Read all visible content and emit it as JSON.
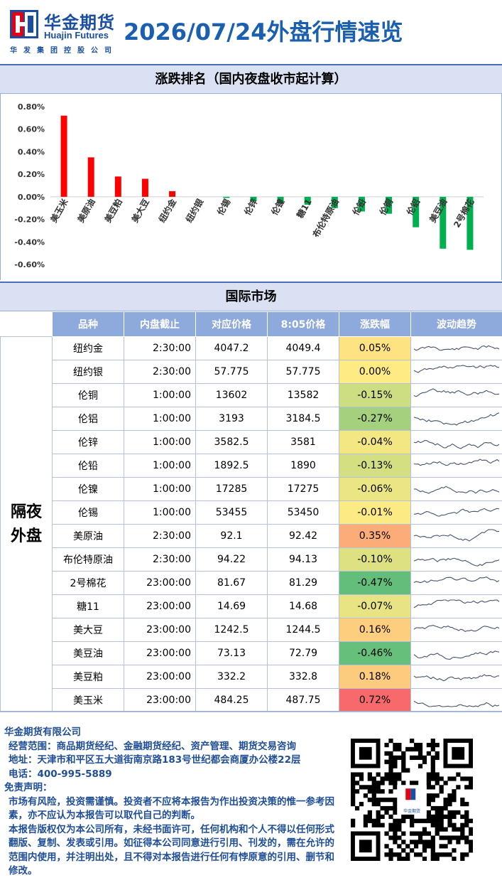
{
  "header": {
    "logo_cn": "华金期货",
    "logo_en": "Huajin Futures",
    "logo_sub": "华发集团控股公司",
    "title": "2026/07/24外盘行情速览"
  },
  "colors": {
    "up": "#ff0000",
    "down": "#00b050",
    "header_blue": "#1b5fb0",
    "table_head": "#8ea9db"
  },
  "ranking_title": "涨跌排名（国内夜盘收市起计算）",
  "chart_data": {
    "type": "bar",
    "categories": [
      "美玉米",
      "美原油",
      "美豆粕",
      "美大豆",
      "纽约金",
      "纽约银",
      "伦锡",
      "伦锌",
      "伦镍",
      "糖11",
      "布伦特原油",
      "伦铅",
      "伦铜",
      "伦铝",
      "美豆油",
      "2号棉花"
    ],
    "values": [
      0.72,
      0.35,
      0.18,
      0.16,
      0.05,
      0.0,
      -0.01,
      -0.04,
      -0.06,
      -0.07,
      -0.1,
      -0.13,
      -0.15,
      -0.27,
      -0.46,
      -0.47
    ],
    "ylim": [
      -0.6,
      0.8
    ],
    "yticks": [
      "0.80%",
      "0.60%",
      "0.40%",
      "0.20%",
      "0.00%",
      "-0.20%",
      "-0.40%",
      "-0.60%"
    ],
    "ytick_values": [
      0.8,
      0.6,
      0.4,
      0.2,
      0.0,
      -0.2,
      -0.4,
      -0.6
    ],
    "grid": false,
    "legend": "none"
  },
  "intl_title": "国际市场",
  "table": {
    "headers": [
      "品种",
      "内盘截止",
      "对应价格",
      "8:05价格",
      "涨跌幅",
      "波动趋势"
    ],
    "group_label": "隔夜外盘",
    "rows": [
      {
        "name": "纽约金",
        "cutoff": "2:30:00",
        "price": "4047.2",
        "price805": "4049.4",
        "change": "0.05%",
        "pct": 0.05
      },
      {
        "name": "纽约银",
        "cutoff": "2:30:00",
        "price": "57.775",
        "price805": "57.775",
        "change": "0.00%",
        "pct": 0.0
      },
      {
        "name": "伦铜",
        "cutoff": "1:00:00",
        "price": "13602",
        "price805": "13582",
        "change": "-0.15%",
        "pct": -0.15
      },
      {
        "name": "伦铝",
        "cutoff": "1:00:00",
        "price": "3193",
        "price805": "3184.5",
        "change": "-0.27%",
        "pct": -0.27
      },
      {
        "name": "伦锌",
        "cutoff": "1:00:00",
        "price": "3582.5",
        "price805": "3581",
        "change": "-0.04%",
        "pct": -0.04
      },
      {
        "name": "伦铅",
        "cutoff": "1:00:00",
        "price": "1892.5",
        "price805": "1890",
        "change": "-0.13%",
        "pct": -0.13
      },
      {
        "name": "伦镍",
        "cutoff": "1:00:00",
        "price": "17285",
        "price805": "17275",
        "change": "-0.06%",
        "pct": -0.06
      },
      {
        "name": "伦锡",
        "cutoff": "1:00:00",
        "price": "53455",
        "price805": "53450",
        "change": "-0.01%",
        "pct": -0.01
      },
      {
        "name": "美原油",
        "cutoff": "2:30:00",
        "price": "92.1",
        "price805": "92.42",
        "change": "0.35%",
        "pct": 0.35
      },
      {
        "name": "布伦特原油",
        "cutoff": "2:30:00",
        "price": "94.22",
        "price805": "94.13",
        "change": "-0.10%",
        "pct": -0.1
      },
      {
        "name": "2号棉花",
        "cutoff": "23:00:00",
        "price": "81.67",
        "price805": "81.29",
        "change": "-0.47%",
        "pct": -0.47
      },
      {
        "name": "糖11",
        "cutoff": "23:00:00",
        "price": "14.69",
        "price805": "14.68",
        "change": "-0.07%",
        "pct": -0.07
      },
      {
        "name": "美大豆",
        "cutoff": "23:00:00",
        "price": "1242.5",
        "price805": "1244.5",
        "change": "0.16%",
        "pct": 0.16
      },
      {
        "name": "美豆油",
        "cutoff": "23:00:00",
        "price": "73.13",
        "price805": "72.79",
        "change": "-0.46%",
        "pct": -0.46
      },
      {
        "name": "美豆粕",
        "cutoff": "23:00:00",
        "price": "332.2",
        "price805": "332.8",
        "change": "0.18%",
        "pct": 0.18
      },
      {
        "name": "美玉米",
        "cutoff": "23:00:00",
        "price": "484.25",
        "price805": "487.75",
        "change": "0.72%",
        "pct": 0.72
      }
    ]
  },
  "footer": {
    "company": "华金期货有限公司",
    "scope": "经营范围：商品期货经纪、金融期货经纪、资产管理、期货交易咨询",
    "address": "地址：天津市和平区五大道街南京路183号世纪都会商厦办公楼22层",
    "phone": "电话：400-995-5889",
    "disclaimer_title": "免责声明：",
    "disclaimer_1": "市场有风险，投资需谨慎。投资者不应将本报告为作出投资决策的惟一参考因素，亦不应认为本报告可以取代自己的判断。",
    "disclaimer_2": "本报告版权仅为本公司所有，未经书面许可，任何机构和个人不得以任何形式翻版、复制、发表或引用。如征得本公司同意进行引用、刊发的，需在允许的范围内使用，并注明出处，且不得对本报告进行任何有悖原意的引用、删节和修改。",
    "qr_logo_text": "华金期货"
  }
}
